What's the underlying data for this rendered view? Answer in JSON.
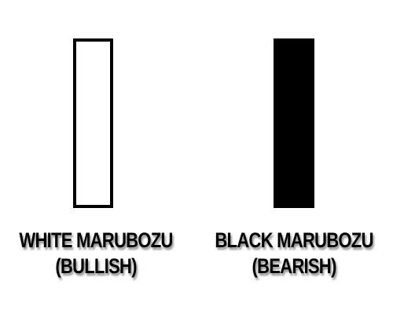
{
  "candles": [
    {
      "name": "white-marubozu",
      "fill": "#ffffff",
      "stroke": "#000000",
      "label_line1": "WHITE MARUBOZU",
      "label_line2": "(BULLISH)"
    },
    {
      "name": "black-marubozu",
      "fill": "#000000",
      "stroke": "#000000",
      "label_line1": "BLACK MARUBOZU",
      "label_line2": "(BEARISH)"
    }
  ]
}
